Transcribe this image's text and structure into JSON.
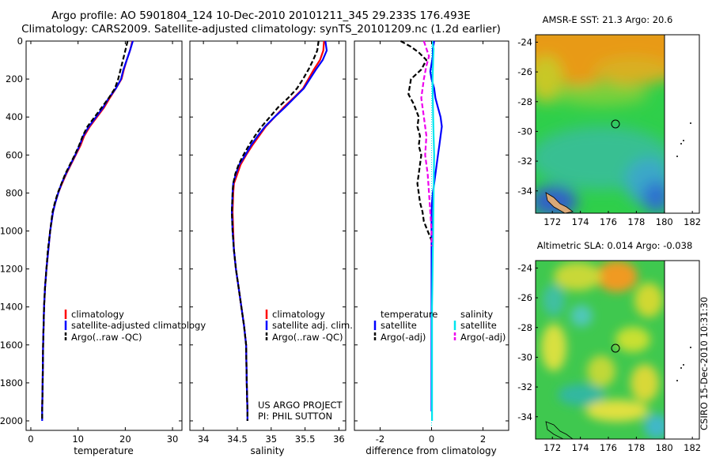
{
  "title_line1": "Argo profile: AO 5901804_124 10-Dec-2010 20101211_345 29.233S 176.493E",
  "title_line2": "Climatology: CARS2009. Satellite-adjusted climatology: synTS_20101209.nc (1.2d earlier)",
  "side_label": "CSIRO 15-Dec-2010 10:31:30",
  "colors": {
    "climatology": "#ff0000",
    "satellite": "#0000ff",
    "argo": "#000000",
    "satellite_salinity": "#00e5ee",
    "argo_salinity": "#ee00ee"
  },
  "chart_data": [
    {
      "type": "line",
      "xlabel": "temperature",
      "ylabel": "",
      "xlim": [
        -1,
        32
      ],
      "ylim": [
        2050,
        0
      ],
      "xticks": [
        0,
        10,
        20,
        30
      ],
      "yticks": [
        0,
        200,
        400,
        600,
        800,
        1000,
        1200,
        1400,
        1600,
        1800,
        2000
      ],
      "legend": [
        "climatology",
        "satellite-adjusted climatology",
        "Argo(..raw -QC)"
      ],
      "series": [
        {
          "name": "climatology",
          "style": "solid",
          "color": "#ff0000",
          "x": [
            21.5,
            21,
            20.3,
            19.7,
            19.2,
            18,
            16.7,
            15.5,
            14,
            12.5,
            11.3,
            10.5,
            9.5,
            8.5,
            7.5,
            6.6,
            5.8,
            5.2,
            4.7,
            4.1,
            3.7,
            3.3,
            3,
            2.8,
            2.7,
            2.6,
            2.5,
            2.4
          ],
          "y": [
            0,
            50,
            100,
            150,
            200,
            250,
            300,
            350,
            400,
            450,
            500,
            550,
            600,
            650,
            700,
            750,
            800,
            850,
            900,
            1000,
            1100,
            1200,
            1300,
            1400,
            1500,
            1600,
            1800,
            1950
          ]
        },
        {
          "name": "satellite-adjusted climatology",
          "style": "solid",
          "color": "#0000ff",
          "x": [
            21.6,
            21,
            20.3,
            19.6,
            19.1,
            18,
            16.5,
            15.3,
            13.8,
            12.3,
            11.1,
            10.3,
            9.4,
            8.4,
            7.4,
            6.5,
            5.8,
            5.2,
            4.7,
            4.1,
            3.7,
            3.3,
            3,
            2.8,
            2.7,
            2.6,
            2.5,
            2.4,
            2.4
          ],
          "y": [
            0,
            50,
            100,
            150,
            200,
            250,
            300,
            350,
            400,
            450,
            500,
            550,
            600,
            650,
            700,
            750,
            800,
            850,
            900,
            1000,
            1100,
            1200,
            1300,
            1400,
            1500,
            1600,
            1800,
            1950,
            2000
          ]
        },
        {
          "name": "Argo(..raw -QC)",
          "style": "dash",
          "color": "#000000",
          "x": [
            20.5,
            20,
            19.5,
            19,
            18.5,
            17.8,
            16.5,
            15,
            13.5,
            12,
            11,
            10.2,
            9.3,
            8.3,
            7.3,
            6.5,
            5.7,
            5.1,
            4.6,
            4.1,
            3.6,
            3.3,
            3,
            2.8,
            2.7,
            2.6,
            2.5,
            2.4,
            2.4
          ],
          "y": [
            0,
            50,
            100,
            150,
            200,
            250,
            300,
            350,
            400,
            450,
            500,
            550,
            600,
            650,
            700,
            750,
            800,
            850,
            900,
            1000,
            1100,
            1200,
            1300,
            1400,
            1500,
            1600,
            1800,
            1950,
            2000
          ]
        }
      ]
    },
    {
      "type": "line",
      "xlabel": "salinity",
      "xlim": [
        33.8,
        36.1
      ],
      "ylim": [
        2050,
        0
      ],
      "xticks": [
        34,
        34.5,
        35,
        35.5,
        36
      ],
      "legend": [
        "climatology",
        "satellite adj. clim.",
        "Argo(..raw -QC)"
      ],
      "annotation": [
        "US ARGO PROJECT",
        "PI: PHIL SUTTON"
      ],
      "series": [
        {
          "name": "climatology",
          "style": "solid",
          "color": "#ff0000",
          "x": [
            35.78,
            35.77,
            35.72,
            35.63,
            35.55,
            35.47,
            35.33,
            35.18,
            35.05,
            34.92,
            34.82,
            34.72,
            34.63,
            34.55,
            34.5,
            34.45,
            34.44,
            34.43,
            34.44,
            34.45,
            34.48,
            34.52,
            34.56,
            34.6,
            34.63,
            34.64,
            34.65
          ],
          "y": [
            0,
            50,
            100,
            150,
            200,
            250,
            300,
            350,
            400,
            450,
            500,
            550,
            600,
            650,
            700,
            750,
            800,
            900,
            1000,
            1100,
            1200,
            1300,
            1400,
            1500,
            1600,
            1800,
            1950
          ]
        },
        {
          "name": "satellite adj. clim.",
          "style": "solid",
          "color": "#0000ff",
          "x": [
            35.8,
            35.82,
            35.76,
            35.66,
            35.57,
            35.48,
            35.34,
            35.2,
            35.05,
            34.91,
            34.8,
            34.7,
            34.62,
            34.53,
            34.48,
            34.44,
            34.43,
            34.42,
            34.43,
            34.45,
            34.48,
            34.52,
            34.56,
            34.6,
            34.63,
            34.64,
            34.65,
            34.65
          ],
          "y": [
            0,
            50,
            100,
            150,
            200,
            250,
            300,
            350,
            400,
            450,
            500,
            550,
            600,
            650,
            700,
            750,
            800,
            900,
            1000,
            1100,
            1200,
            1300,
            1400,
            1500,
            1600,
            1800,
            1950,
            2000
          ]
        },
        {
          "name": "Argo(..raw -QC)",
          "style": "dash",
          "color": "#000000",
          "x": [
            35.7,
            35.68,
            35.62,
            35.55,
            35.47,
            35.38,
            35.25,
            35.1,
            34.98,
            34.86,
            34.76,
            34.67,
            34.59,
            34.52,
            34.47,
            34.44,
            34.43,
            34.42,
            34.43,
            34.45,
            34.48,
            34.52,
            34.56,
            34.6,
            34.63,
            34.64,
            34.65,
            34.65
          ],
          "y": [
            0,
            50,
            100,
            150,
            200,
            250,
            300,
            350,
            400,
            450,
            500,
            550,
            600,
            650,
            700,
            750,
            800,
            900,
            1000,
            1100,
            1200,
            1300,
            1400,
            1500,
            1600,
            1800,
            1950,
            2000
          ]
        }
      ]
    },
    {
      "type": "line",
      "xlabel": "difference from climatology",
      "xlim": [
        -3,
        3
      ],
      "ylim": [
        2050,
        0
      ],
      "xticks": [
        -2,
        0,
        2
      ],
      "legend_groups": [
        {
          "title": "temperature",
          "items": [
            "satellite",
            "Argo(-adj)"
          ]
        },
        {
          "title": "salinity",
          "items": [
            "satellite",
            "Argo(-adj)"
          ]
        }
      ],
      "series": [
        {
          "name": "temperature satellite",
          "style": "solid",
          "color": "#0000ff",
          "x": [
            0.1,
            0.05,
            0.05,
            0,
            -0.05,
            0,
            0.1,
            0.15,
            0.25,
            0.35,
            0.4,
            0.35,
            0.3,
            0.25,
            0.2,
            0.15,
            0.1,
            0.05,
            0.02,
            0,
            0,
            0,
            0,
            0,
            0,
            0
          ],
          "y": [
            0,
            40,
            80,
            120,
            160,
            200,
            250,
            300,
            350,
            400,
            450,
            500,
            550,
            600,
            650,
            700,
            750,
            800,
            850,
            900,
            1000,
            1200,
            1400,
            1600,
            1800,
            1950
          ]
        },
        {
          "name": "temperature Argo(-adj)",
          "style": "dash",
          "color": "#000000",
          "x": [
            -1.2,
            -0.8,
            -0.5,
            -0.2,
            -0.4,
            -0.8,
            -0.9,
            -0.7,
            -0.5,
            -0.55,
            -0.45,
            -0.5,
            -0.4,
            -0.45,
            -0.5,
            -0.55,
            -0.5,
            -0.45,
            -0.35,
            -0.3,
            -0.15,
            0
          ],
          "y": [
            0,
            30,
            60,
            100,
            150,
            200,
            280,
            330,
            400,
            450,
            500,
            550,
            600,
            650,
            700,
            750,
            800,
            850,
            900,
            950,
            1000,
            1050
          ]
        },
        {
          "name": "salinity satellite",
          "style": "solid",
          "color": "#00e5ee",
          "x": [
            0.02,
            0.08,
            0.06,
            0.04,
            0.05,
            0.06,
            0.08,
            0.1,
            0.09,
            0.08,
            0.07,
            0.06,
            0.05,
            0.04,
            0.03,
            0.02,
            0.02,
            0.02,
            0.02,
            0.02,
            0.02
          ],
          "y": [
            0,
            40,
            100,
            200,
            300,
            400,
            500,
            600,
            700,
            800,
            900,
            1000,
            1100,
            1200,
            1300,
            1400,
            1500,
            1600,
            1700,
            1850,
            2000
          ]
        },
        {
          "name": "salinity Argo(-adj)",
          "style": "dash",
          "color": "#ee00ee",
          "x": [
            -0.3,
            -0.2,
            -0.1,
            -0.2,
            -0.3,
            -0.4,
            -0.3,
            -0.2,
            -0.25,
            -0.15,
            -0.1,
            -0.05,
            0,
            0
          ],
          "y": [
            0,
            40,
            80,
            130,
            200,
            300,
            400,
            500,
            600,
            700,
            800,
            900,
            1000,
            1080
          ]
        }
      ]
    },
    {
      "type": "heatmap",
      "title": "AMSR-E SST: 21.3 Argo: 20.6",
      "xlim": [
        170.8,
        182.5
      ],
      "ylim": [
        -35.5,
        -23.5
      ],
      "xticks": [
        172,
        174,
        176,
        178,
        180,
        182
      ],
      "yticks": [
        -24,
        -26,
        -28,
        -30,
        -32,
        -34
      ],
      "argo_location": {
        "lon": 176.493,
        "lat": -29.233
      }
    },
    {
      "type": "heatmap",
      "title": "Altimetric SLA: 0.014 Argo: -0.038",
      "xlim": [
        170.8,
        182.5
      ],
      "ylim": [
        -35.5,
        -23.5
      ],
      "xticks": [
        172,
        174,
        176,
        178,
        180,
        182
      ],
      "yticks": [
        -24,
        -26,
        -28,
        -30,
        -32,
        -34
      ],
      "argo_location": {
        "lon": 176.493,
        "lat": -29.233
      }
    }
  ]
}
